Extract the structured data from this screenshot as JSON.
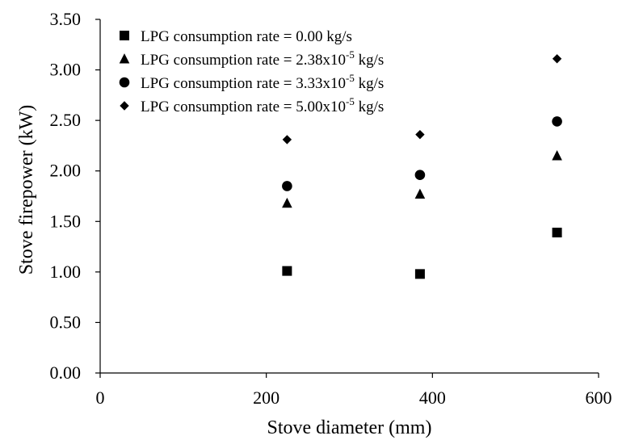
{
  "chart_data": {
    "type": "scatter",
    "title": "",
    "xlabel": "Stove diameter (mm)",
    "ylabel": "Stove firepower (kW)",
    "xlim": [
      0,
      600
    ],
    "ylim": [
      0,
      3.5
    ],
    "xticks": [
      "0",
      "200",
      "400",
      "600"
    ],
    "yticks": [
      "0.00",
      "0.50",
      "1.00",
      "1.50",
      "2.00",
      "2.50",
      "3.00",
      "3.50"
    ],
    "grid": false,
    "legend_position": "top-left",
    "x": [
      225,
      385,
      550
    ],
    "series": [
      {
        "name_base": "LPG consumption rate = 0.00 kg/s",
        "name_exp": "",
        "name_suffix": "",
        "marker": "square",
        "values": [
          1.01,
          0.98,
          1.39
        ]
      },
      {
        "name_base": "LPG consumption rate = 2.38x10",
        "name_exp": "-5",
        "name_suffix": " kg/s",
        "marker": "triangle",
        "values": [
          1.68,
          1.77,
          2.15
        ]
      },
      {
        "name_base": "LPG consumption rate = 3.33x10",
        "name_exp": "-5",
        "name_suffix": " kg/s",
        "marker": "circle",
        "values": [
          1.85,
          1.96,
          2.49
        ]
      },
      {
        "name_base": "LPG consumption rate = 5.00x10",
        "name_exp": "-5",
        "name_suffix": " kg/s",
        "marker": "diamond",
        "values": [
          2.31,
          2.36,
          3.11
        ]
      }
    ],
    "colors": {
      "marker": "#000000",
      "axis": "#000000",
      "background": "#ffffff"
    }
  }
}
